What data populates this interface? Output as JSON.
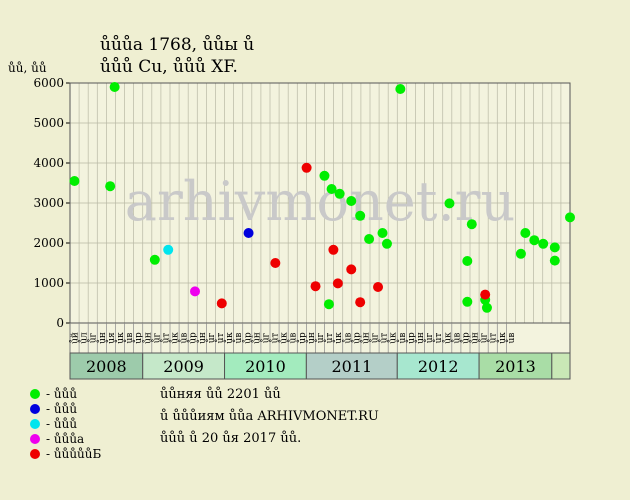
{
  "title_line1": "ůůůа 1768, ůůы ů",
  "title_line2": "ůůů Cu, ůůů XF.",
  "y_axis_label": "ůů, ůů",
  "watermark": "arhivmonet.ru",
  "notes": [
    "ůůняя ůů 2201 ůů",
    "ů ůůůиям ůůа ARHIVMONET.RU",
    "ůůů ů 20 ůя 2017 ůů."
  ],
  "legend": [
    {
      "label": "- ůůů",
      "color": "#00ee00"
    },
    {
      "label": "- ůůů",
      "color": "#0000dd"
    },
    {
      "label": "- ůůů",
      "color": "#00e5ee"
    },
    {
      "label": "- ůůůа",
      "color": "#ee00ee"
    },
    {
      "label": "- ůůůůůБ",
      "color": "#ee0000"
    }
  ],
  "chart_data": {
    "type": "scatter",
    "ylim": [
      0,
      6000
    ],
    "yticks": [
      0,
      1000,
      2000,
      3000,
      4000,
      5000,
      6000
    ],
    "grid": true,
    "month_labels": [
      "ůй",
      "ůл",
      "ůг",
      "ůн",
      "ůя",
      "ůк",
      "ůв",
      "ůр",
      "ůн",
      "ůг",
      "ůт",
      "ůк",
      "ůв",
      "ůр",
      "ůн",
      "ůг",
      "ůт",
      "ůк",
      "ůв",
      "ůр",
      "ůн",
      "ůг",
      "ůт",
      "ůк",
      "ůв",
      "ůр",
      "ůн",
      "ůг",
      "ůт",
      "ůк",
      "ůв",
      "ůр",
      "ůн",
      "ůг",
      "ůт",
      "ůк",
      "ůв",
      "ůр",
      "ůн",
      "ůг",
      "ůт",
      "ůк",
      "ůв",
      "ůр",
      "ůн",
      "ůг",
      "ůт",
      "ůк",
      "ůв"
    ],
    "years": [
      {
        "label": "2008",
        "from": 0,
        "to": 8,
        "color": "#9dcbab"
      },
      {
        "label": "2009",
        "from": 8,
        "to": 17,
        "color": "#c5e8c9"
      },
      {
        "label": "2010",
        "from": 17,
        "to": 26,
        "color": "#a3ebbe"
      },
      {
        "label": "2011",
        "from": 26,
        "to": 36,
        "color": "#b4cfc8"
      },
      {
        "label": "2012",
        "from": 36,
        "to": 45,
        "color": "#a7e7cf"
      },
      {
        "label": "2013",
        "from": 45,
        "to": 53,
        "color": "#a9dda6"
      },
      {
        "label": "",
        "from": 53,
        "to": 55,
        "color": "#c9e8b6"
      }
    ],
    "slots": 55,
    "series": [
      {
        "color": "#00ee00",
        "points": [
          [
            0.5,
            3550
          ],
          [
            4.5,
            3420
          ],
          [
            5.0,
            5900
          ],
          [
            9.5,
            1580
          ],
          [
            28.5,
            3680
          ],
          [
            29.0,
            470
          ],
          [
            29.3,
            3350
          ],
          [
            30.2,
            3230
          ],
          [
            31.5,
            3050
          ],
          [
            32.5,
            2680
          ],
          [
            33.5,
            2100
          ],
          [
            35.0,
            2250
          ],
          [
            35.5,
            1980
          ],
          [
            37.0,
            5850
          ],
          [
            42.5,
            2990
          ],
          [
            44.5,
            1550
          ],
          [
            44.5,
            530
          ],
          [
            45.0,
            2470
          ],
          [
            46.5,
            580
          ],
          [
            46.7,
            380
          ],
          [
            50.5,
            1730
          ],
          [
            51.0,
            2250
          ],
          [
            52.0,
            2070
          ],
          [
            53.0,
            1980
          ],
          [
            54.3,
            1890
          ],
          [
            54.3,
            1560
          ],
          [
            56.0,
            2640
          ]
        ]
      },
      {
        "color": "#0000dd",
        "points": [
          [
            20.0,
            2250
          ]
        ]
      },
      {
        "color": "#00e5ee",
        "points": [
          [
            11.0,
            1830
          ]
        ]
      },
      {
        "color": "#ee00ee",
        "points": [
          [
            14.0,
            790
          ]
        ]
      },
      {
        "color": "#ee0000",
        "points": [
          [
            17.0,
            490
          ],
          [
            23.0,
            1500
          ],
          [
            26.5,
            3880
          ],
          [
            27.5,
            920
          ],
          [
            29.5,
            1830
          ],
          [
            30.0,
            990
          ],
          [
            31.5,
            1340
          ],
          [
            32.5,
            520
          ],
          [
            34.5,
            900
          ],
          [
            46.5,
            710
          ]
        ]
      }
    ]
  }
}
